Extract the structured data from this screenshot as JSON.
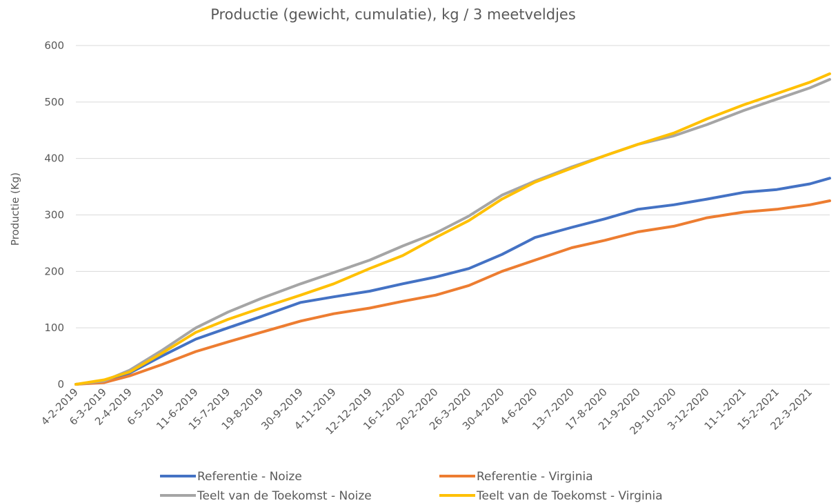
{
  "chart_data": {
    "type": "line",
    "title": "Productie (gewicht, cumulatie), kg / 3 meetveldjes",
    "xlabel": "",
    "ylabel": "Productie (Kg)",
    "ylim": [
      0,
      600
    ],
    "yticks": [
      "0",
      "100",
      "200",
      "300",
      "400",
      "500",
      "600"
    ],
    "xlim": [
      "2019-02-04",
      "2021-04-12"
    ],
    "x_tick_labels": [
      "4-2-2019",
      "6-3-2019",
      "2-4-2019",
      "6-5-2019",
      "11-6-2019",
      "15-7-2019",
      "19-8-2019",
      "30-9-2019",
      "4-11-2019",
      "12-12-2019",
      "16-1-2020",
      "20-2-2020",
      "26-3-2020",
      "30-4-2020",
      "4-6-2020",
      "13-7-2020",
      "17-8-2020",
      "21-9-2020",
      "29-10-2020",
      "3-12-2020",
      "11-1-2021",
      "15-2-2021",
      "22-3-2021"
    ],
    "grid": true,
    "legend_position": "bottom",
    "x": [
      "4-2-2019",
      "6-3-2019",
      "2-4-2019",
      "6-5-2019",
      "11-6-2019",
      "15-7-2019",
      "19-8-2019",
      "30-9-2019",
      "4-11-2019",
      "12-12-2019",
      "16-1-2020",
      "20-2-2020",
      "26-3-2020",
      "30-4-2020",
      "4-6-2020",
      "13-7-2020",
      "17-8-2020",
      "21-9-2020",
      "29-10-2020",
      "3-12-2020",
      "11-1-2021",
      "15-2-2021",
      "22-3-2021",
      "12-4-2021"
    ],
    "series": [
      {
        "name": "Referentie - Noize",
        "color": "#4472c4",
        "values": [
          0,
          5,
          20,
          50,
          80,
          100,
          120,
          145,
          155,
          165,
          178,
          190,
          205,
          230,
          260,
          278,
          293,
          310,
          318,
          328,
          340,
          345,
          355,
          365
        ]
      },
      {
        "name": "Referentie - Virginia",
        "color": "#ed7d31",
        "values": [
          0,
          3,
          15,
          35,
          58,
          75,
          92,
          112,
          125,
          135,
          147,
          158,
          175,
          200,
          220,
          242,
          255,
          270,
          280,
          295,
          305,
          310,
          318,
          325
        ]
      },
      {
        "name": "Teelt van de Toekomst - Noize",
        "color": "#a5a5a5",
        "values": [
          0,
          6,
          25,
          60,
          100,
          128,
          152,
          178,
          198,
          220,
          245,
          268,
          298,
          335,
          360,
          385,
          405,
          425,
          440,
          460,
          485,
          505,
          525,
          540
        ]
      },
      {
        "name": "Teelt van de Toekomst - Virginia",
        "color": "#ffc000",
        "values": [
          0,
          8,
          22,
          55,
          92,
          115,
          135,
          158,
          178,
          205,
          228,
          260,
          290,
          328,
          358,
          383,
          405,
          425,
          445,
          470,
          495,
          515,
          535,
          550
        ]
      }
    ]
  }
}
